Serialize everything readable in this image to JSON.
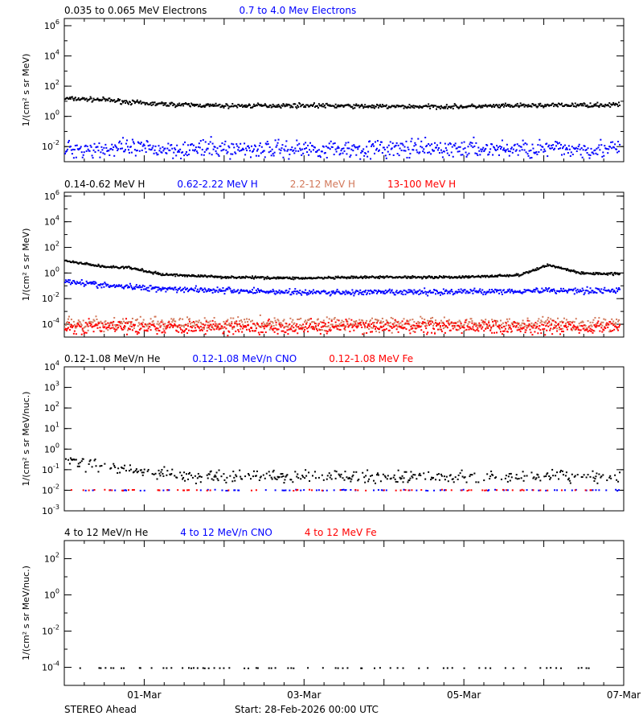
{
  "footer": {
    "left": "STEREO Ahead",
    "center": "Start: 28-Feb-2026 00:00 UTC"
  },
  "x_tick_labels": [
    "01-Mar",
    "03-Mar",
    "05-Mar",
    "07-Mar"
  ],
  "chart_data": [
    {
      "type": "scatter",
      "yscale": "log",
      "ylabel": "1/(cm² s sr MeV)",
      "xlim": [
        "2026-02-28T00:00",
        "2026-03-07T00:00"
      ],
      "ylim": [
        0.001,
        3000000
      ],
      "y_ticks": [
        {
          "base": "10",
          "exp": "-2",
          "v": 0.01
        },
        {
          "base": "10",
          "exp": "0",
          "v": 1
        },
        {
          "base": "10",
          "exp": "2",
          "v": 100
        },
        {
          "base": "10",
          "exp": "4",
          "v": 10000
        },
        {
          "base": "10",
          "exp": "6",
          "v": 1000000
        }
      ],
      "legend": [
        {
          "label": "0.035 to 0.065 MeV Electrons",
          "color": "#000000"
        },
        {
          "label": "0.7 to 4.0 Mev Electrons",
          "color": "#0000ff"
        }
      ],
      "series": [
        {
          "color": "#000000",
          "profile": [
            [
              0,
              17
            ],
            [
              0.5,
              14
            ],
            [
              1,
              8
            ],
            [
              1.5,
              6.5
            ],
            [
              2,
              5.5
            ],
            [
              3,
              6
            ],
            [
              4,
              5
            ],
            [
              5,
              5
            ],
            [
              6,
              6
            ],
            [
              6.9,
              6.5
            ]
          ],
          "scatter": 0.12
        },
        {
          "color": "#0000ff",
          "profile": [
            [
              0,
              0.008
            ],
            [
              3,
              0.008
            ],
            [
              6.9,
              0.008
            ]
          ],
          "scatter": 0.5
        }
      ]
    },
    {
      "type": "scatter",
      "yscale": "log",
      "ylabel": "1/(cm² s sr MeV)",
      "xlim": [
        "2026-02-28T00:00",
        "2026-03-07T00:00"
      ],
      "ylim": [
        1e-05,
        2000000
      ],
      "y_ticks": [
        {
          "base": "10",
          "exp": "-4",
          "v": 0.0001
        },
        {
          "base": "10",
          "exp": "-2",
          "v": 0.01
        },
        {
          "base": "10",
          "exp": "0",
          "v": 1
        },
        {
          "base": "10",
          "exp": "2",
          "v": 100
        },
        {
          "base": "10",
          "exp": "4",
          "v": 10000
        },
        {
          "base": "10",
          "exp": "6",
          "v": 1000000
        }
      ],
      "legend": [
        {
          "label": "0.14-0.62 MeV H",
          "color": "#000000"
        },
        {
          "label": "0.62-2.22 MeV H",
          "color": "#0000ff"
        },
        {
          "label": "2.2-12 MeV H",
          "color": "#d2785a"
        },
        {
          "label": "13-100 MeV H",
          "color": "#ff0000"
        }
      ],
      "series": [
        {
          "color": "#000000",
          "profile": [
            [
              0,
              10
            ],
            [
              0.5,
              3.5
            ],
            [
              0.8,
              3
            ],
            [
              1.2,
              0.9
            ],
            [
              2,
              0.55
            ],
            [
              3,
              0.45
            ],
            [
              4,
              0.55
            ],
            [
              5,
              0.55
            ],
            [
              5.7,
              0.8
            ],
            [
              6.05,
              5
            ],
            [
              6.3,
              2
            ],
            [
              6.45,
              1.1
            ],
            [
              6.9,
              1.0
            ]
          ],
          "scatter": 0.08
        },
        {
          "color": "#0000ff",
          "profile": [
            [
              0,
              0.3
            ],
            [
              0.5,
              0.12
            ],
            [
              1,
              0.08
            ],
            [
              2,
              0.05
            ],
            [
              3,
              0.035
            ],
            [
              4,
              0.035
            ],
            [
              5,
              0.04
            ],
            [
              6,
              0.05
            ],
            [
              6.9,
              0.05
            ]
          ],
          "scatter": 0.2
        },
        {
          "color": "#d2785a",
          "profile": [
            [
              0,
              0.00012
            ],
            [
              6.9,
              0.00012
            ]
          ],
          "scatter": 0.45
        },
        {
          "color": "#ff0000",
          "profile": [
            [
              0,
              7e-05
            ],
            [
              6.9,
              7e-05
            ]
          ],
          "scatter": 0.45
        }
      ]
    },
    {
      "type": "scatter",
      "yscale": "log",
      "ylabel": "1/(cm² s sr MeV/nuc.)",
      "xlim": [
        "2026-02-28T00:00",
        "2026-03-07T00:00"
      ],
      "ylim": [
        0.001,
        10000
      ],
      "y_ticks": [
        {
          "base": "10",
          "exp": "-3",
          "v": 0.001
        },
        {
          "base": "10",
          "exp": "-2",
          "v": 0.01
        },
        {
          "base": "10",
          "exp": "-1",
          "v": 0.1
        },
        {
          "base": "10",
          "exp": "0",
          "v": 1
        },
        {
          "base": "10",
          "exp": "1",
          "v": 10
        },
        {
          "base": "10",
          "exp": "2",
          "v": 100
        },
        {
          "base": "10",
          "exp": "3",
          "v": 1000
        },
        {
          "base": "10",
          "exp": "4",
          "v": 10000
        }
      ],
      "legend": [
        {
          "label": "0.12-1.08 MeV/n He",
          "color": "#000000"
        },
        {
          "label": "0.12-1.08 MeV/n CNO",
          "color": "#0000ff"
        },
        {
          "label": "0.12-1.08 MeV Fe",
          "color": "#ff0000"
        }
      ],
      "series": [
        {
          "color": "#000000",
          "profile": [
            [
              0,
              0.3
            ],
            [
              0.4,
              0.18
            ],
            [
              0.9,
              0.1
            ],
            [
              1.5,
              0.05
            ],
            [
              6.9,
              0.05
            ]
          ],
          "scatter": 0.25,
          "sparse": 0.55
        },
        {
          "color": "#0000ff",
          "profile": [
            [
              0,
              0.011
            ],
            [
              6.9,
              0.011
            ]
          ],
          "scatter": 0.02,
          "sparse": 0.12
        },
        {
          "color": "#ff0000",
          "profile": [
            [
              0,
              0.011
            ],
            [
              6.9,
              0.011
            ]
          ],
          "scatter": 0.02,
          "sparse": 0.1
        }
      ]
    },
    {
      "type": "scatter",
      "yscale": "log",
      "ylabel": "1/(cm² s sr MeV/nuc.)",
      "xlim": [
        "2026-02-28T00:00",
        "2026-03-07T00:00"
      ],
      "ylim": [
        1e-05,
        1000
      ],
      "y_ticks": [
        {
          "base": "10",
          "exp": "-4",
          "v": 0.0001
        },
        {
          "base": "10",
          "exp": "-2",
          "v": 0.01
        },
        {
          "base": "10",
          "exp": "0",
          "v": 1
        },
        {
          "base": "10",
          "exp": "2",
          "v": 100
        }
      ],
      "legend": [
        {
          "label": "4 to 12 MeV/n He",
          "color": "#000000"
        },
        {
          "label": "4 to 12 MeV/n CNO",
          "color": "#0000ff"
        },
        {
          "label": "4 to 12 MeV Fe",
          "color": "#ff0000"
        }
      ],
      "series": [
        {
          "color": "#000000",
          "profile": [
            [
              0,
              0.0001
            ],
            [
              6.9,
              0.0001
            ]
          ],
          "scatter": 0.01,
          "sparse": 0.12
        }
      ]
    }
  ]
}
